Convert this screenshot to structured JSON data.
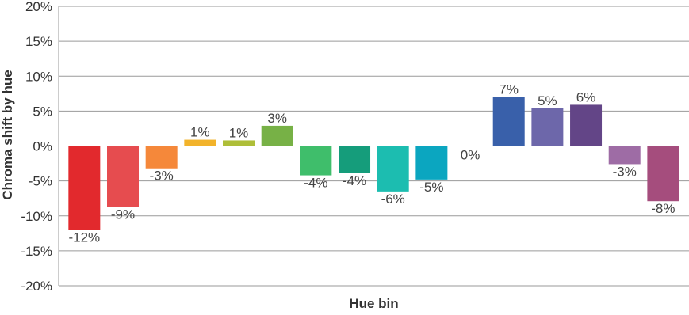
{
  "chart_data": {
    "type": "bar",
    "title": "",
    "xlabel": "Hue bin",
    "ylabel": "Chroma shift by hue",
    "ylim": [
      -20,
      20
    ],
    "yticks": [
      20,
      15,
      10,
      5,
      0,
      -5,
      -10,
      -15,
      -20
    ],
    "ytick_labels": [
      "20%",
      "15%",
      "10%",
      "5%",
      "0%",
      "-5%",
      "-10%",
      "-15%",
      "-20%"
    ],
    "grid": true,
    "legend": "none",
    "categories": [
      "",
      "",
      "",
      "",
      "",
      "",
      "",
      "",
      "",
      "",
      "",
      "",
      "",
      "",
      "",
      ""
    ],
    "values": [
      -12,
      -8.7,
      -3.2,
      0.9,
      0.8,
      2.9,
      -4.2,
      -3.9,
      -6.5,
      -4.8,
      0,
      7.0,
      5.4,
      5.9,
      -2.6,
      -7.9
    ],
    "data_labels": [
      "-12%",
      "-9%",
      "-3%",
      "1%",
      "1%",
      "3%",
      "-4%",
      "-4%",
      "-6%",
      "-5%",
      "0%",
      "7%",
      "5%",
      "6%",
      "-3%",
      "-8%"
    ],
    "colors": [
      "#e2292d",
      "#e64c4f",
      "#f5883a",
      "#f2b32b",
      "#aebe38",
      "#77b146",
      "#3fbe6b",
      "#159d7b",
      "#1cbdb0",
      "#0ba6c0",
      "#ffffff",
      "#3960aa",
      "#6d67aa",
      "#634587",
      "#9e6ca5",
      "#a54d7d"
    ],
    "gridline_color": "#9a9a9a"
  }
}
